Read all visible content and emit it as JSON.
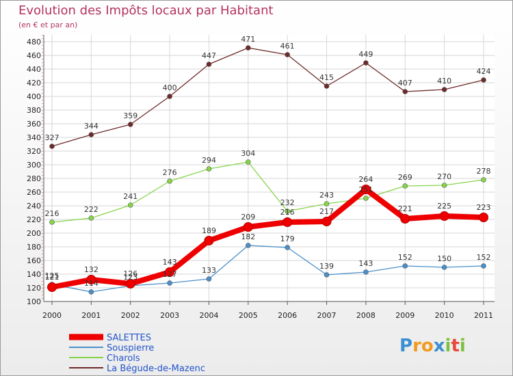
{
  "chart_data": {
    "type": "line",
    "title": "Evolution des Impôts locaux par Habitant",
    "subtitle": "(en € et par an)",
    "xlabel": "",
    "ylabel": "",
    "x": [
      "2000",
      "2001",
      "2002",
      "2003",
      "2004",
      "2005",
      "2006",
      "2007",
      "2008",
      "2009",
      "2010",
      "2011"
    ],
    "ylim": [
      100,
      480
    ],
    "yticks": [
      100,
      120,
      140,
      160,
      180,
      200,
      220,
      240,
      260,
      280,
      300,
      320,
      340,
      360,
      380,
      400,
      420,
      440,
      460,
      480
    ],
    "grid": true,
    "series": [
      {
        "name": "SALETTES",
        "color": "#ee0000",
        "values": [
          121,
          132,
          126,
          143,
          189,
          209,
          216,
          217,
          264,
          221,
          225,
          223
        ]
      },
      {
        "name": "Souspierre",
        "color": "#4a8fc8",
        "values": [
          125,
          114,
          123,
          127,
          133,
          182,
          179,
          139,
          143,
          152,
          150,
          152
        ]
      },
      {
        "name": "Charols",
        "color": "#86d44a",
        "values": [
          216,
          222,
          241,
          276,
          294,
          304,
          232,
          243,
          251,
          269,
          270,
          278
        ]
      },
      {
        "name": "La Bégude-de-Mazenc",
        "color": "#6e2a2a",
        "values": [
          327,
          344,
          359,
          400,
          447,
          471,
          461,
          415,
          449,
          407,
          410,
          424
        ]
      }
    ]
  },
  "logo": {
    "text": "Proxiti",
    "letters": [
      "P",
      "r",
      "o",
      "x",
      "i",
      "t",
      "i"
    ],
    "colors": [
      "#3c8fd0",
      "#f39a1e",
      "#f39a1e",
      "#3c8fd0",
      "#7cc242",
      "#e84a3c",
      "#7cc242"
    ]
  }
}
